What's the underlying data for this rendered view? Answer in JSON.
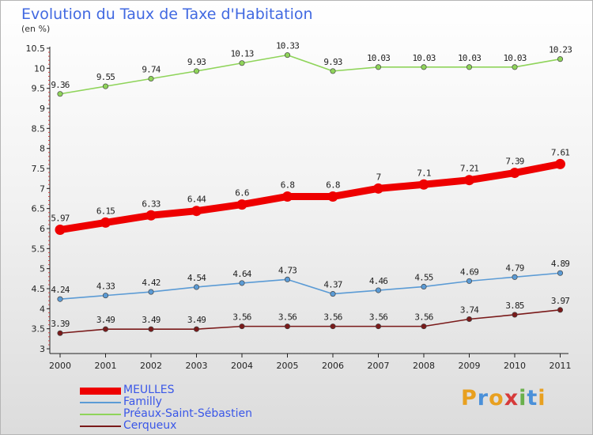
{
  "chart_data": {
    "type": "line",
    "title": "Evolution du Taux de Taxe d'Habitation",
    "subtitle": "(en %)",
    "xlabel": "",
    "ylabel": "",
    "x": [
      "2000",
      "2001",
      "2002",
      "2003",
      "2004",
      "2005",
      "2006",
      "2007",
      "2008",
      "2009",
      "2010",
      "2011"
    ],
    "ylim": [
      3,
      10.5
    ],
    "yticks": [
      "3",
      "3.5",
      "4",
      "4.5",
      "5",
      "5.5",
      "6",
      "6.5",
      "7",
      "7.5",
      "8",
      "8.5",
      "9",
      "9.5",
      "10",
      "10.5"
    ],
    "grid": false,
    "legend_position": "bottom-left",
    "series": [
      {
        "name": "MEULLES",
        "color": "#ee0000",
        "values": [
          5.97,
          6.15,
          6.33,
          6.44,
          6.6,
          6.8,
          6.8,
          7,
          7.1,
          7.21,
          7.39,
          7.61
        ],
        "labels": [
          "5.97",
          "6.15",
          "6.33",
          "6.44",
          "6.6",
          "6.8",
          "6.8",
          "7",
          "7.1",
          "7.21",
          "7.39",
          "7.61"
        ],
        "emphasis": true
      },
      {
        "name": "Familly",
        "color": "#5b9bd5",
        "values": [
          4.24,
          4.33,
          4.42,
          4.54,
          4.64,
          4.73,
          4.37,
          4.46,
          4.55,
          4.69,
          4.79,
          4.89
        ],
        "labels": [
          "4.24",
          "4.33",
          "4.42",
          "4.54",
          "4.64",
          "4.73",
          "4.37",
          "4.46",
          "4.55",
          "4.69",
          "4.79",
          "4.89"
        ],
        "emphasis": false
      },
      {
        "name": "Préaux-Saint-Sébastien",
        "color": "#8fd45a",
        "values": [
          9.36,
          9.55,
          9.74,
          9.93,
          10.13,
          10.33,
          9.93,
          10.03,
          10.03,
          10.03,
          10.03,
          10.23
        ],
        "labels": [
          "9.36",
          "9.55",
          "9.74",
          "9.93",
          "10.13",
          "10.33",
          "9.93",
          "10.03",
          "10.03",
          "10.03",
          "10.03",
          "10.23"
        ],
        "emphasis": false
      },
      {
        "name": "Cerqueux",
        "color": "#7a1a1a",
        "values": [
          3.39,
          3.49,
          3.49,
          3.49,
          3.56,
          3.56,
          3.56,
          3.56,
          3.56,
          3.74,
          3.85,
          3.97
        ],
        "labels": [
          "3.39",
          "3.49",
          "3.49",
          "3.49",
          "3.56",
          "3.56",
          "3.56",
          "3.56",
          "3.56",
          "3.74",
          "3.85",
          "3.97"
        ],
        "emphasis": false
      }
    ]
  },
  "brand": {
    "letters": [
      "P",
      "r",
      "o",
      "x",
      "i",
      "t",
      "i"
    ],
    "colors": [
      "#e8a020",
      "#4a90d9",
      "#e8a020",
      "#d63a3a",
      "#6ab04c",
      "#4a90d9",
      "#e8a020"
    ]
  }
}
